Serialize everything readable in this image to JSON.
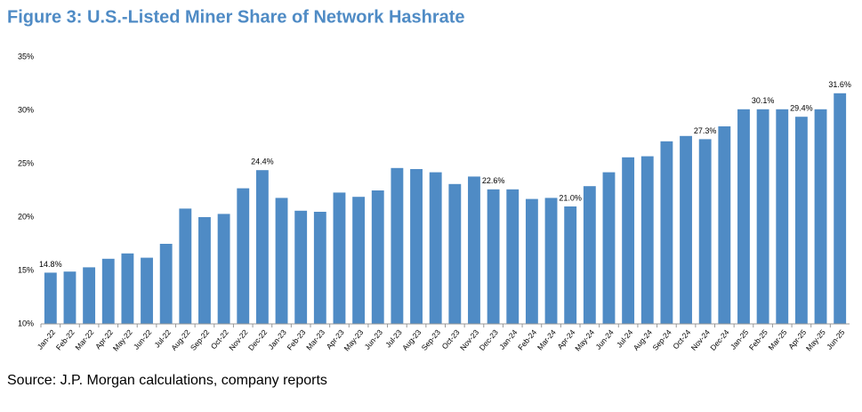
{
  "chart_data": {
    "type": "bar",
    "title": "Figure 3: U.S.-Listed Miner Share of Network Hashrate",
    "source": "Source: J.P. Morgan calculations, company reports",
    "categories": [
      "Jan-22",
      "Feb-22",
      "Mar-22",
      "Apr-22",
      "May-22",
      "Jun-22",
      "Jul-22",
      "Aug-22",
      "Sep-22",
      "Oct-22",
      "Nov-22",
      "Dec-22",
      "Jan-23",
      "Feb-23",
      "Mar-23",
      "Apr-23",
      "May-23",
      "Jun-23",
      "Jul-23",
      "Aug-23",
      "Sep-23",
      "Oct-23",
      "Nov-23",
      "Dec-23",
      "Jan-24",
      "Feb-24",
      "Mar-24",
      "Apr-24",
      "May-24",
      "Jun-24",
      "Jul-24",
      "Aug-24",
      "Sep-24",
      "Oct-24",
      "Nov-24",
      "Dec-24",
      "Jan-25",
      "Feb-25",
      "Mar-25",
      "Apr-25",
      "May-25",
      "Jun-25"
    ],
    "values": [
      14.8,
      14.9,
      15.3,
      16.1,
      16.6,
      16.2,
      17.5,
      20.8,
      20.0,
      20.3,
      22.7,
      24.4,
      21.8,
      20.6,
      20.5,
      22.3,
      21.9,
      22.5,
      24.6,
      24.5,
      24.2,
      23.1,
      23.8,
      22.6,
      22.6,
      21.7,
      21.8,
      21.0,
      22.9,
      24.2,
      25.6,
      25.7,
      27.1,
      27.6,
      27.3,
      28.5,
      30.1,
      30.1,
      30.1,
      29.4,
      30.1,
      31.6
    ],
    "value_labels": [
      "14.8%",
      null,
      null,
      null,
      null,
      null,
      null,
      null,
      null,
      null,
      null,
      "24.4%",
      null,
      null,
      null,
      null,
      null,
      null,
      null,
      null,
      null,
      null,
      null,
      "22.6%",
      null,
      null,
      null,
      "21.0%",
      null,
      null,
      null,
      null,
      null,
      null,
      "27.3%",
      null,
      null,
      "30.1%",
      null,
      "29.4%",
      null,
      "31.6%"
    ],
    "color": "#4f8bc5",
    "ylim": [
      10,
      35
    ],
    "yticks": [
      {
        "value": 10,
        "label": "10%"
      },
      {
        "value": 15,
        "label": "15%"
      },
      {
        "value": 20,
        "label": "20%"
      },
      {
        "value": 25,
        "label": "25%"
      },
      {
        "value": 30,
        "label": "30%"
      },
      {
        "value": 35,
        "label": "35%"
      }
    ],
    "grid": false
  }
}
